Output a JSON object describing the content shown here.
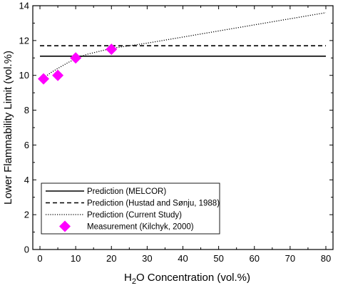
{
  "chart_data": {
    "type": "line",
    "title": "",
    "xlabel": "H2O Concentration (vol.%)",
    "xlabel_parts": {
      "pre": "H",
      "sub": "2",
      "post": "O Concentration (vol.%)"
    },
    "ylabel": "Lower Flammability Limit (vol.%)",
    "xlim": [
      -2,
      82
    ],
    "ylim": [
      0,
      14
    ],
    "xticks": [
      0,
      10,
      20,
      30,
      40,
      50,
      60,
      70,
      80
    ],
    "yticks": [
      0,
      2,
      4,
      6,
      8,
      10,
      12,
      14
    ],
    "grid": false,
    "legend_position": "bottom-left",
    "series": [
      {
        "name": "Prediction (MELCOR)",
        "kind": "line",
        "style": "solid",
        "color": "#000000",
        "x": [
          0,
          80
        ],
        "y": [
          11.1,
          11.1
        ]
      },
      {
        "name": "Prediction (Hustad and Sønju, 1988)",
        "kind": "line",
        "style": "dashed",
        "color": "#000000",
        "x": [
          0,
          80
        ],
        "y": [
          11.7,
          11.7
        ]
      },
      {
        "name": "Prediction (Current Study)",
        "kind": "line",
        "style": "dotted",
        "color": "#000000",
        "x": [
          1,
          3,
          5,
          8,
          10,
          13,
          15,
          20,
          25,
          30,
          40,
          50,
          60,
          70,
          80
        ],
        "y": [
          9.85,
          10.15,
          10.4,
          10.75,
          10.95,
          11.2,
          11.3,
          11.55,
          11.7,
          11.85,
          12.2,
          12.55,
          12.9,
          13.25,
          13.6
        ]
      },
      {
        "name": "Measurement (Kilchyk, 2000)",
        "kind": "scatter",
        "marker": "diamond",
        "color": "#ff00ff",
        "x": [
          1,
          5,
          10,
          20
        ],
        "y": [
          9.8,
          10.0,
          11.0,
          11.5
        ]
      }
    ]
  }
}
